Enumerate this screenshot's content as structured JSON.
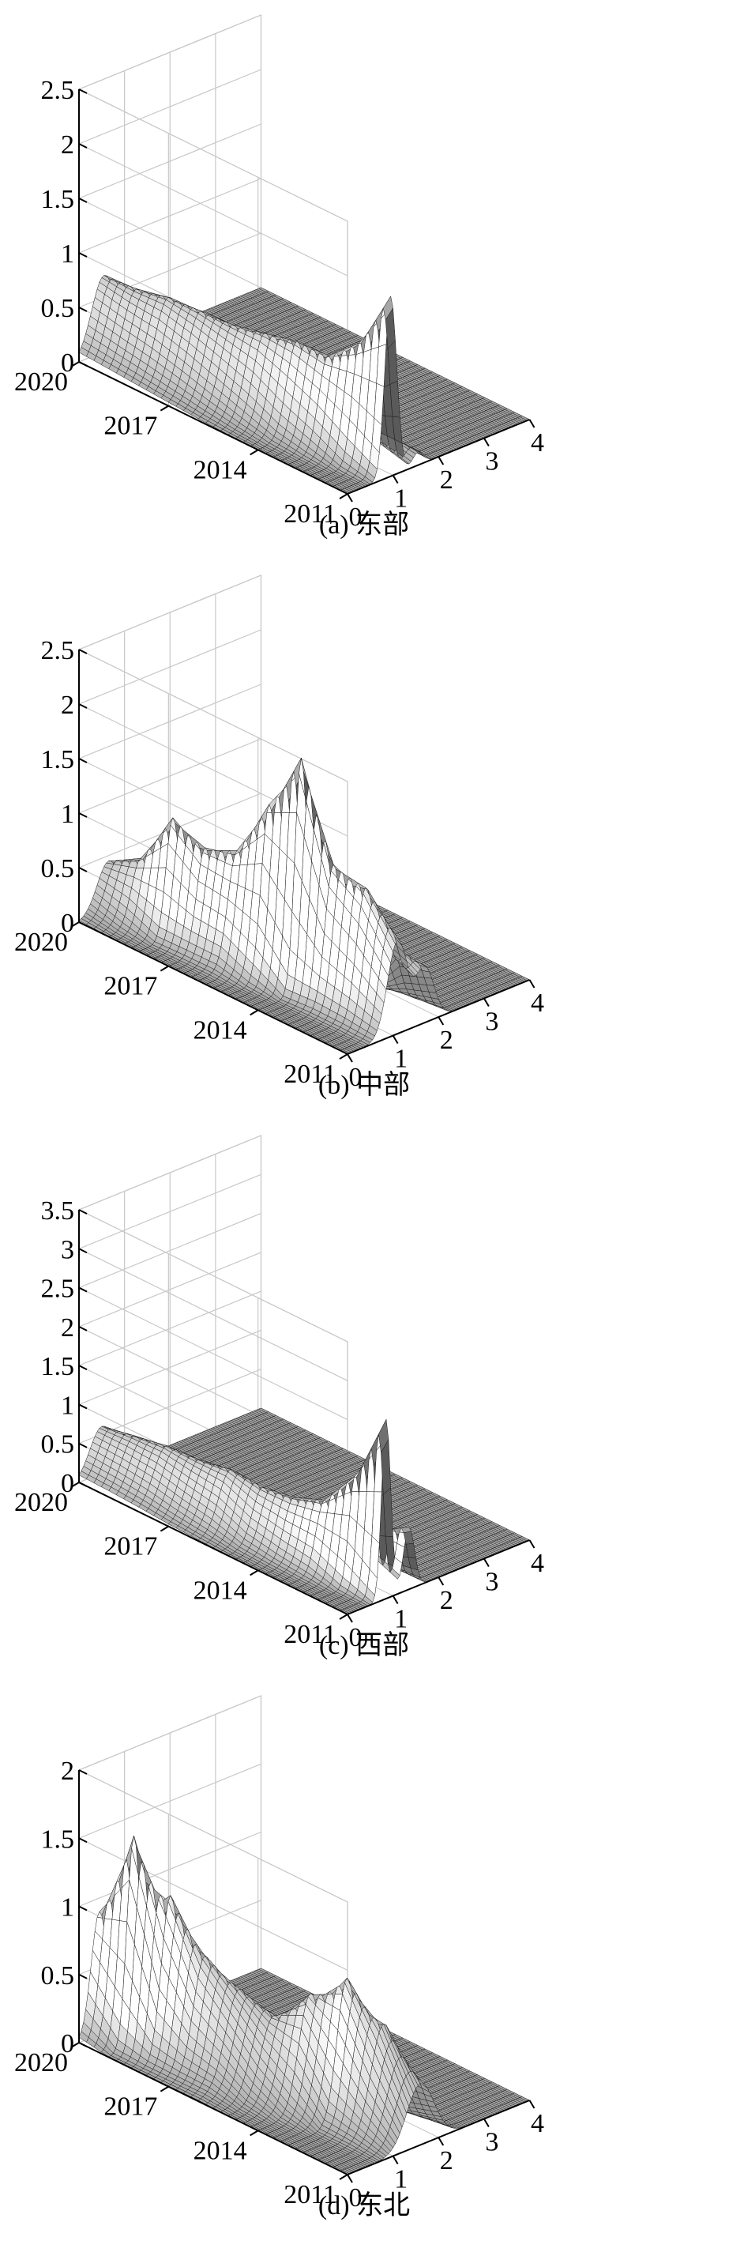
{
  "figure": {
    "panels": [
      {
        "caption": "(a) 东部"
      },
      {
        "caption": "(b) 中部"
      },
      {
        "caption": "(c) 西部"
      },
      {
        "caption": "(d) 东北"
      }
    ]
  },
  "colors": {
    "axis": "#000000",
    "grid": "#c8c8c8",
    "mesh": "#1a1a1a",
    "surface_dark": "#5a5a5a",
    "surface_light": "#ffffff"
  },
  "chart_data": [
    {
      "type": "surface3d",
      "caption": "(a) 东部",
      "title": "",
      "xlabel": "",
      "ylabel": "",
      "zlabel": "",
      "x_ticks": [
        "0",
        "1",
        "2",
        "3",
        "4"
      ],
      "y_ticks": [
        "2011",
        "2014",
        "2017",
        "2020"
      ],
      "z_ticks": [
        "0",
        "0.5",
        "1",
        "1.5",
        "2",
        "2.5"
      ],
      "xlim": [
        0,
        4
      ],
      "ylim": [
        2011,
        2020
      ],
      "zlim": [
        0,
        2.5
      ],
      "grid": true,
      "years": [
        2011,
        2012,
        2013,
        2014,
        2015,
        2016,
        2017,
        2018,
        2019,
        2020
      ],
      "kernel_peaks": [
        [
          {
            "mu": 0.95,
            "sd": 0.13,
            "h": 1.65
          },
          {
            "mu": 1.55,
            "sd": 0.12,
            "h": 0.12
          }
        ],
        [
          {
            "mu": 0.92,
            "sd": 0.16,
            "h": 1.1
          },
          {
            "mu": 1.5,
            "sd": 0.15,
            "h": 0.15
          }
        ],
        [
          {
            "mu": 0.88,
            "sd": 0.2,
            "h": 0.85
          }
        ],
        [
          {
            "mu": 0.85,
            "sd": 0.22,
            "h": 0.85
          }
        ],
        [
          {
            "mu": 0.8,
            "sd": 0.25,
            "h": 0.8
          }
        ],
        [
          {
            "mu": 0.75,
            "sd": 0.27,
            "h": 0.75
          }
        ],
        [
          {
            "mu": 0.7,
            "sd": 0.28,
            "h": 0.75
          }
        ],
        [
          {
            "mu": 0.65,
            "sd": 0.28,
            "h": 0.75
          }
        ],
        [
          {
            "mu": 0.6,
            "sd": 0.28,
            "h": 0.7
          }
        ],
        [
          {
            "mu": 0.55,
            "sd": 0.27,
            "h": 0.7
          }
        ]
      ]
    },
    {
      "type": "surface3d",
      "caption": "(b) 中部",
      "title": "",
      "xlabel": "",
      "ylabel": "",
      "zlabel": "",
      "x_ticks": [
        "0",
        "1",
        "2",
        "3",
        "4"
      ],
      "y_ticks": [
        "2011",
        "2014",
        "2017",
        "2020"
      ],
      "z_ticks": [
        "0",
        "0.5",
        "1",
        "1.5",
        "2",
        "2.5"
      ],
      "xlim": [
        0,
        4
      ],
      "ylim": [
        2011,
        2020
      ],
      "zlim": [
        0,
        2.5
      ],
      "grid": true,
      "years": [
        2011,
        2012,
        2013,
        2014,
        2015,
        2016,
        2017,
        2018,
        2019,
        2020
      ],
      "kernel_peaks": [
        [
          {
            "mu": 1.1,
            "sd": 0.22,
            "h": 0.85
          },
          {
            "mu": 1.7,
            "sd": 0.2,
            "h": 0.5
          }
        ],
        [
          {
            "mu": 1.05,
            "sd": 0.2,
            "h": 1.2
          },
          {
            "mu": 1.6,
            "sd": 0.2,
            "h": 0.6
          }
        ],
        [
          {
            "mu": 1.0,
            "sd": 0.18,
            "h": 1.3
          }
        ],
        [
          {
            "mu": 0.95,
            "sd": 0.14,
            "h": 2.15
          }
        ],
        [
          {
            "mu": 0.9,
            "sd": 0.17,
            "h": 1.6
          }
        ],
        [
          {
            "mu": 0.85,
            "sd": 0.2,
            "h": 1.05
          }
        ],
        [
          {
            "mu": 0.8,
            "sd": 0.18,
            "h": 0.95
          }
        ],
        [
          {
            "mu": 0.75,
            "sd": 0.15,
            "h": 1.1
          }
        ],
        [
          {
            "mu": 0.7,
            "sd": 0.2,
            "h": 0.6
          }
        ],
        [
          {
            "mu": 0.65,
            "sd": 0.25,
            "h": 0.45
          }
        ]
      ]
    },
    {
      "type": "surface3d",
      "caption": "(c) 西部",
      "title": "",
      "xlabel": "",
      "ylabel": "",
      "zlabel": "",
      "x_ticks": [
        "0",
        "1",
        "2",
        "3",
        "4"
      ],
      "y_ticks": [
        "2011",
        "2014",
        "2017",
        "2020"
      ],
      "z_ticks": [
        "0",
        "0.5",
        "1",
        "1.5",
        "2",
        "2.5",
        "3",
        "3.5"
      ],
      "xlim": [
        0,
        4
      ],
      "ylim": [
        2011,
        2020
      ],
      "zlim": [
        0,
        3.5
      ],
      "grid": true,
      "years": [
        2011,
        2012,
        2013,
        2014,
        2015,
        2016,
        2017,
        2018,
        2019,
        2020
      ],
      "kernel_peaks": [
        [
          {
            "mu": 0.85,
            "sd": 0.1,
            "h": 2.3
          },
          {
            "mu": 1.35,
            "sd": 0.12,
            "h": 0.8
          }
        ],
        [
          {
            "mu": 0.82,
            "sd": 0.13,
            "h": 1.4
          },
          {
            "mu": 1.3,
            "sd": 0.14,
            "h": 0.6
          }
        ],
        [
          {
            "mu": 0.8,
            "sd": 0.18,
            "h": 0.9
          }
        ],
        [
          {
            "mu": 0.78,
            "sd": 0.2,
            "h": 0.75
          }
        ],
        [
          {
            "mu": 0.75,
            "sd": 0.22,
            "h": 0.7
          }
        ],
        [
          {
            "mu": 0.7,
            "sd": 0.25,
            "h": 0.75
          }
        ],
        [
          {
            "mu": 0.65,
            "sd": 0.26,
            "h": 0.7
          }
        ],
        [
          {
            "mu": 0.6,
            "sd": 0.27,
            "h": 0.7
          }
        ],
        [
          {
            "mu": 0.55,
            "sd": 0.27,
            "h": 0.65
          }
        ],
        [
          {
            "mu": 0.5,
            "sd": 0.26,
            "h": 0.6
          }
        ]
      ]
    },
    {
      "type": "surface3d",
      "caption": "(d) 东北",
      "title": "",
      "xlabel": "",
      "ylabel": "",
      "zlabel": "",
      "x_ticks": [
        "0",
        "1",
        "2",
        "3",
        "4"
      ],
      "y_ticks": [
        "2011",
        "2014",
        "2017",
        "2020"
      ],
      "z_ticks": [
        "0",
        "0.5",
        "1",
        "1.5",
        "2"
      ],
      "xlim": [
        0,
        4
      ],
      "ylim": [
        2011,
        2020
      ],
      "zlim": [
        0,
        2
      ],
      "grid": true,
      "years": [
        2011,
        2012,
        2013,
        2014,
        2015,
        2016,
        2017,
        2018,
        2019,
        2020
      ],
      "kernel_peaks": [
        [
          {
            "mu": 1.6,
            "sd": 0.3,
            "h": 0.45
          }
        ],
        [
          {
            "mu": 1.45,
            "sd": 0.28,
            "h": 0.8
          }
        ],
        [
          {
            "mu": 1.3,
            "sd": 0.22,
            "h": 1.05
          }
        ],
        [
          {
            "mu": 1.15,
            "sd": 0.25,
            "h": 0.85
          }
        ],
        [
          {
            "mu": 1.0,
            "sd": 0.28,
            "h": 0.6
          }
        ],
        [
          {
            "mu": 0.9,
            "sd": 0.3,
            "h": 0.7
          }
        ],
        [
          {
            "mu": 0.8,
            "sd": 0.25,
            "h": 0.85
          }
        ],
        [
          {
            "mu": 0.7,
            "sd": 0.2,
            "h": 1.2
          }
        ],
        [
          {
            "mu": 0.55,
            "sd": 0.15,
            "h": 1.55
          }
        ],
        [
          {
            "mu": 0.45,
            "sd": 0.18,
            "h": 0.9
          }
        ]
      ]
    }
  ]
}
